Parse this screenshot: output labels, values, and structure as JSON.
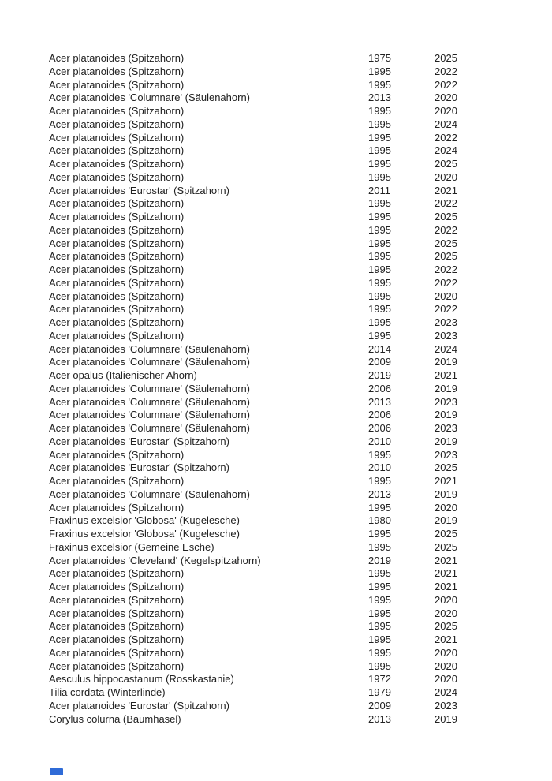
{
  "page": {
    "background_color": "#ffffff",
    "text_color": "#212121"
  },
  "footer_marker": {
    "color": "#2f6bd7"
  },
  "table": {
    "rows": [
      {
        "name": "Acer platanoides (Spitzahorn)",
        "year1": "1975",
        "year2": "2025"
      },
      {
        "name": "Acer platanoides (Spitzahorn)",
        "year1": "1995",
        "year2": "2022"
      },
      {
        "name": "Acer platanoides (Spitzahorn)",
        "year1": "1995",
        "year2": "2022"
      },
      {
        "name": "Acer platanoides 'Columnare' (Säulenahorn)",
        "year1": "2013",
        "year2": "2020"
      },
      {
        "name": "Acer platanoides (Spitzahorn)",
        "year1": "1995",
        "year2": "2020"
      },
      {
        "name": "Acer platanoides (Spitzahorn)",
        "year1": "1995",
        "year2": "2024"
      },
      {
        "name": "Acer platanoides (Spitzahorn)",
        "year1": "1995",
        "year2": "2022"
      },
      {
        "name": "Acer platanoides (Spitzahorn)",
        "year1": "1995",
        "year2": "2024"
      },
      {
        "name": "Acer platanoides (Spitzahorn)",
        "year1": "1995",
        "year2": "2025"
      },
      {
        "name": "Acer platanoides (Spitzahorn)",
        "year1": "1995",
        "year2": "2020"
      },
      {
        "name": "Acer platanoides 'Eurostar' (Spitzahorn)",
        "year1": "2011",
        "year2": "2021"
      },
      {
        "name": "Acer platanoides (Spitzahorn)",
        "year1": "1995",
        "year2": "2022"
      },
      {
        "name": "Acer platanoides (Spitzahorn)",
        "year1": "1995",
        "year2": "2025"
      },
      {
        "name": "Acer platanoides (Spitzahorn)",
        "year1": "1995",
        "year2": "2022"
      },
      {
        "name": "Acer platanoides (Spitzahorn)",
        "year1": "1995",
        "year2": "2025"
      },
      {
        "name": "Acer platanoides (Spitzahorn)",
        "year1": "1995",
        "year2": "2025"
      },
      {
        "name": "Acer platanoides (Spitzahorn)",
        "year1": "1995",
        "year2": "2022"
      },
      {
        "name": "Acer platanoides (Spitzahorn)",
        "year1": "1995",
        "year2": "2022"
      },
      {
        "name": "Acer platanoides (Spitzahorn)",
        "year1": "1995",
        "year2": "2020"
      },
      {
        "name": "Acer platanoides (Spitzahorn)",
        "year1": "1995",
        "year2": "2022"
      },
      {
        "name": "Acer platanoides (Spitzahorn)",
        "year1": "1995",
        "year2": "2023"
      },
      {
        "name": "Acer platanoides (Spitzahorn)",
        "year1": "1995",
        "year2": "2023"
      },
      {
        "name": "Acer platanoides 'Columnare' (Säulenahorn)",
        "year1": "2014",
        "year2": "2024"
      },
      {
        "name": "Acer platanoides 'Columnare' (Säulenahorn)",
        "year1": "2009",
        "year2": "2019"
      },
      {
        "name": "Acer opalus (Italienischer Ahorn)",
        "year1": "2019",
        "year2": "2021"
      },
      {
        "name": "Acer platanoides 'Columnare' (Säulenahorn)",
        "year1": "2006",
        "year2": "2019"
      },
      {
        "name": "Acer platanoides 'Columnare' (Säulenahorn)",
        "year1": "2013",
        "year2": "2023"
      },
      {
        "name": "Acer platanoides 'Columnare' (Säulenahorn)",
        "year1": "2006",
        "year2": "2019"
      },
      {
        "name": "Acer platanoides 'Columnare' (Säulenahorn)",
        "year1": "2006",
        "year2": "2023"
      },
      {
        "name": "Acer platanoides 'Eurostar' (Spitzahorn)",
        "year1": "2010",
        "year2": "2019"
      },
      {
        "name": "Acer platanoides (Spitzahorn)",
        "year1": "1995",
        "year2": "2023"
      },
      {
        "name": "Acer platanoides 'Eurostar' (Spitzahorn)",
        "year1": "2010",
        "year2": "2025"
      },
      {
        "name": "Acer platanoides (Spitzahorn)",
        "year1": "1995",
        "year2": "2021"
      },
      {
        "name": "Acer platanoides 'Columnare' (Säulenahorn)",
        "year1": "2013",
        "year2": "2019"
      },
      {
        "name": "Acer platanoides (Spitzahorn)",
        "year1": "1995",
        "year2": "2020"
      },
      {
        "name": "Fraxinus excelsior 'Globosa' (Kugelesche)",
        "year1": "1980",
        "year2": "2019"
      },
      {
        "name": "Fraxinus excelsior 'Globosa' (Kugelesche)",
        "year1": "1995",
        "year2": "2025"
      },
      {
        "name": "Fraxinus excelsior (Gemeine Esche)",
        "year1": "1995",
        "year2": "2025"
      },
      {
        "name": "Acer platanoides 'Cleveland' (Kegelspitzahorn)",
        "year1": "2019",
        "year2": "2021"
      },
      {
        "name": "Acer platanoides (Spitzahorn)",
        "year1": "1995",
        "year2": "2021"
      },
      {
        "name": "Acer platanoides (Spitzahorn)",
        "year1": "1995",
        "year2": "2021"
      },
      {
        "name": "Acer platanoides (Spitzahorn)",
        "year1": "1995",
        "year2": "2020"
      },
      {
        "name": "Acer platanoides (Spitzahorn)",
        "year1": "1995",
        "year2": "2020"
      },
      {
        "name": "Acer platanoides (Spitzahorn)",
        "year1": "1995",
        "year2": "2025"
      },
      {
        "name": "Acer platanoides (Spitzahorn)",
        "year1": "1995",
        "year2": "2021"
      },
      {
        "name": "Acer platanoides (Spitzahorn)",
        "year1": "1995",
        "year2": "2020"
      },
      {
        "name": "Acer platanoides (Spitzahorn)",
        "year1": "1995",
        "year2": "2020"
      },
      {
        "name": "Aesculus hippocastanum (Rosskastanie)",
        "year1": "1972",
        "year2": "2020"
      },
      {
        "name": "Tilia cordata (Winterlinde)",
        "year1": "1979",
        "year2": "2024"
      },
      {
        "name": "Acer platanoides 'Eurostar' (Spitzahorn)",
        "year1": "2009",
        "year2": "2023"
      },
      {
        "name": "Corylus colurna (Baumhasel)",
        "year1": "2013",
        "year2": "2019"
      }
    ]
  }
}
